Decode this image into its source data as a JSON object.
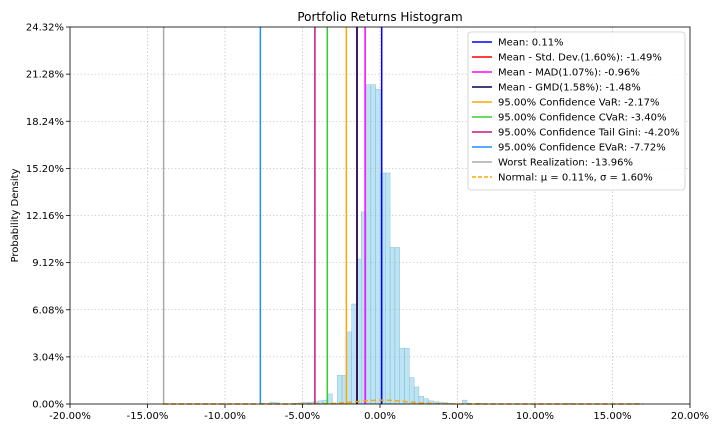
{
  "chart_data": {
    "type": "bar",
    "title": "Portfolio Returns Histogram",
    "xlabel": "",
    "ylabel": "Probability Density",
    "xlim": [
      -0.2,
      0.2
    ],
    "ylim": [
      0,
      24.32
    ],
    "x_ticks": [
      -0.2,
      -0.15,
      -0.1,
      -0.05,
      0.0,
      0.05,
      0.1,
      0.15,
      0.2
    ],
    "x_tick_labels": [
      "-20.00%",
      "-15.00%",
      "-10.00%",
      "-5.00%",
      "0.00%",
      "5.00%",
      "10.00%",
      "15.00%",
      "20.00%"
    ],
    "y_ticks": [
      0,
      3.04,
      6.08,
      9.12,
      12.16,
      15.2,
      18.24,
      21.28,
      24.32
    ],
    "y_tick_labels": [
      "0.00%",
      "3.04%",
      "6.08%",
      "9.12%",
      "12.16%",
      "15.20%",
      "18.24%",
      "21.28%",
      "24.32%"
    ],
    "grid": true,
    "legend_position": "top-right",
    "bar_color": "#87ceeb",
    "histogram": {
      "bin_width": 0.0031,
      "bins": [
        [
          -0.1396,
          0.02
        ],
        [
          -0.0772,
          0.05
        ],
        [
          -0.071,
          0.12
        ],
        [
          -0.0679,
          0.08
        ],
        [
          -0.0555,
          0.05
        ],
        [
          -0.0524,
          0.07
        ],
        [
          -0.0493,
          0.1
        ],
        [
          -0.0462,
          0.12
        ],
        [
          -0.0431,
          0.15
        ],
        [
          -0.04,
          0.2
        ],
        [
          -0.0369,
          0.25
        ],
        [
          -0.0338,
          0.65
        ],
        [
          -0.0307,
          0.05
        ],
        [
          -0.0276,
          1.85
        ],
        [
          -0.0245,
          1.85
        ],
        [
          -0.0214,
          4.65
        ],
        [
          -0.0183,
          6.45
        ],
        [
          -0.0152,
          9.35
        ],
        [
          -0.0121,
          12.4
        ],
        [
          -0.009,
          20.6
        ],
        [
          -0.0059,
          20.6
        ],
        [
          -0.0028,
          20.3
        ],
        [
          0.0003,
          14.9
        ],
        [
          0.0034,
          14.9
        ],
        [
          0.0065,
          10.1
        ],
        [
          0.0096,
          10.1
        ],
        [
          0.0127,
          3.6
        ],
        [
          0.0158,
          3.6
        ],
        [
          0.0189,
          1.7
        ],
        [
          0.022,
          1.1
        ],
        [
          0.0251,
          0.5
        ],
        [
          0.0282,
          0.35
        ],
        [
          0.0313,
          0.2
        ],
        [
          0.0344,
          0.15
        ],
        [
          0.0375,
          0.12
        ],
        [
          0.0406,
          0.08
        ],
        [
          0.0437,
          0.05
        ],
        [
          0.053,
          0.25
        ],
        [
          0.0561,
          0.05
        ],
        [
          0.0623,
          0.05
        ],
        [
          0.12,
          0.03
        ],
        [
          0.163,
          0.03
        ]
      ]
    },
    "normal_curve": {
      "mu": 0.0011,
      "sigma": 0.016,
      "color": "#ffa500",
      "style": "dashed"
    },
    "vlines": [
      {
        "value": 0.0011,
        "color": "#0000ff"
      },
      {
        "value": -0.0149,
        "color": "#ff0000"
      },
      {
        "value": -0.0096,
        "color": "#ff00ff"
      },
      {
        "value": -0.0148,
        "color": "#00005a"
      },
      {
        "value": -0.0217,
        "color": "#ffa500"
      },
      {
        "value": -0.034,
        "color": "#32cd32"
      },
      {
        "value": -0.042,
        "color": "#c71585"
      },
      {
        "value": -0.0772,
        "color": "#1e90ff"
      },
      {
        "value": -0.1396,
        "color": "#aaaaaa"
      }
    ],
    "legend": [
      {
        "label": "Mean: 0.11%",
        "color": "#0000ff",
        "style": "solid"
      },
      {
        "label": "Mean - Std. Dev.(1.60%): -1.49%",
        "color": "#ff0000",
        "style": "solid"
      },
      {
        "label": "Mean - MAD(1.07%): -0.96%",
        "color": "#ff00ff",
        "style": "solid"
      },
      {
        "label": "Mean - GMD(1.58%): -1.48%",
        "color": "#00005a",
        "style": "solid"
      },
      {
        "label": "95.00% Confidence VaR: -2.17%",
        "color": "#ffa500",
        "style": "solid"
      },
      {
        "label": "95.00% Confidence CVaR: -3.40%",
        "color": "#32cd32",
        "style": "solid"
      },
      {
        "label": "95.00% Confidence Tail Gini: -4.20%",
        "color": "#c71585",
        "style": "solid"
      },
      {
        "label": "95.00% Confidence EVaR: -7.72%",
        "color": "#1e90ff",
        "style": "solid"
      },
      {
        "label": "Worst Realization: -13.96%",
        "color": "#aaaaaa",
        "style": "solid"
      },
      {
        "label": "Normal: μ = 0.11%, σ = 1.60%",
        "color": "#ffa500",
        "style": "dashed"
      }
    ]
  }
}
